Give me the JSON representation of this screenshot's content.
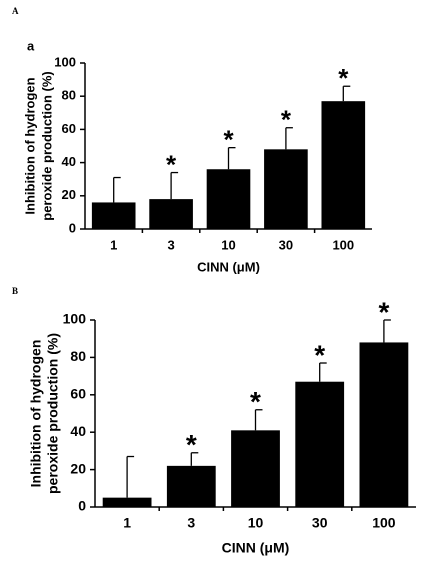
{
  "chart_data": [
    {
      "type": "bar",
      "panel": "A",
      "title": "a",
      "categories": [
        "1",
        "3",
        "10",
        "30",
        "100"
      ],
      "values": [
        16,
        18,
        36,
        48,
        77
      ],
      "errors": [
        15,
        16,
        13,
        13,
        9
      ],
      "annotations": [
        null,
        "*",
        "*",
        "*",
        "*"
      ],
      "color": "#000000",
      "ylim": [
        0,
        100
      ],
      "yticks": [
        0,
        20,
        40,
        60,
        80,
        100
      ],
      "xlabel": "CINN (μM)",
      "ylabel": [
        "Inhibition of hydrogen",
        "peroxide production (%)"
      ]
    },
    {
      "type": "bar",
      "panel": "B",
      "categories": [
        "1",
        "3",
        "10",
        "30",
        "100"
      ],
      "values": [
        5,
        22,
        41,
        67,
        88
      ],
      "errors": [
        22,
        7,
        11,
        10,
        12
      ],
      "annotations": [
        null,
        "*",
        "*",
        "*",
        "*"
      ],
      "color": "#000000",
      "ylim": [
        0,
        100
      ],
      "yticks": [
        0,
        20,
        40,
        60,
        80,
        100
      ],
      "xlabel": "CINN (μM)",
      "ylabel": [
        "Inhibition of hydrogen",
        "peroxide production (%)"
      ]
    }
  ]
}
